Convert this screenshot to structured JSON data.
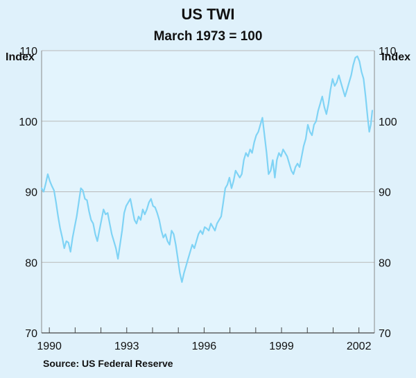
{
  "chart_data": {
    "type": "line",
    "title": "US TWI",
    "subtitle": "March 1973 = 100",
    "ylabel_left": "Index",
    "ylabel_right": "Index",
    "ylim": [
      70,
      110
    ],
    "yticks": [
      70,
      80,
      90,
      100,
      110
    ],
    "xlim": [
      1989.7,
      2002.6
    ],
    "xticks": [
      {
        "x": 1990,
        "label": "1990"
      },
      {
        "x": 1993,
        "label": "1993"
      },
      {
        "x": 1996,
        "label": "1996"
      },
      {
        "x": 1999,
        "label": "1999"
      },
      {
        "x": 2002,
        "label": "2002"
      }
    ],
    "grid": true,
    "line_color": "#7fd3f5",
    "series": [
      {
        "values": [
          [
            1989.7,
            90.5
          ],
          [
            1989.78,
            90.0
          ],
          [
            1989.86,
            91.2
          ],
          [
            1989.94,
            92.5
          ],
          [
            1990.02,
            91.5
          ],
          [
            1990.1,
            90.8
          ],
          [
            1990.18,
            90.2
          ],
          [
            1990.26,
            88.5
          ],
          [
            1990.34,
            86.5
          ],
          [
            1990.42,
            84.8
          ],
          [
            1990.5,
            83.5
          ],
          [
            1990.58,
            82.0
          ],
          [
            1990.66,
            83.0
          ],
          [
            1990.74,
            82.8
          ],
          [
            1990.82,
            81.5
          ],
          [
            1990.9,
            83.5
          ],
          [
            1990.98,
            85.0
          ],
          [
            1991.06,
            86.5
          ],
          [
            1991.14,
            88.5
          ],
          [
            1991.22,
            90.5
          ],
          [
            1991.3,
            90.2
          ],
          [
            1991.38,
            89.0
          ],
          [
            1991.46,
            88.8
          ],
          [
            1991.54,
            87.2
          ],
          [
            1991.62,
            86.0
          ],
          [
            1991.7,
            85.5
          ],
          [
            1991.78,
            84.0
          ],
          [
            1991.86,
            83.0
          ],
          [
            1991.94,
            84.5
          ],
          [
            1992.02,
            86.0
          ],
          [
            1992.1,
            87.5
          ],
          [
            1992.18,
            86.8
          ],
          [
            1992.26,
            87.0
          ],
          [
            1992.34,
            85.5
          ],
          [
            1992.42,
            84.0
          ],
          [
            1992.5,
            83.0
          ],
          [
            1992.58,
            82.0
          ],
          [
            1992.66,
            80.5
          ],
          [
            1992.74,
            82.5
          ],
          [
            1992.82,
            84.5
          ],
          [
            1992.9,
            87.0
          ],
          [
            1992.98,
            88.0
          ],
          [
            1993.06,
            88.5
          ],
          [
            1993.14,
            89.0
          ],
          [
            1993.22,
            87.5
          ],
          [
            1993.3,
            86.0
          ],
          [
            1993.38,
            85.5
          ],
          [
            1993.46,
            86.5
          ],
          [
            1993.54,
            86.0
          ],
          [
            1993.62,
            87.5
          ],
          [
            1993.7,
            86.8
          ],
          [
            1993.78,
            87.5
          ],
          [
            1993.86,
            88.5
          ],
          [
            1993.94,
            89.0
          ],
          [
            1994.02,
            88.0
          ],
          [
            1994.1,
            87.8
          ],
          [
            1994.18,
            87.0
          ],
          [
            1994.26,
            86.0
          ],
          [
            1994.34,
            84.5
          ],
          [
            1994.42,
            83.5
          ],
          [
            1994.5,
            84.0
          ],
          [
            1994.58,
            83.0
          ],
          [
            1994.66,
            82.5
          ],
          [
            1994.74,
            84.5
          ],
          [
            1994.82,
            84.0
          ],
          [
            1994.9,
            82.5
          ],
          [
            1994.98,
            80.5
          ],
          [
            1995.06,
            78.5
          ],
          [
            1995.14,
            77.2
          ],
          [
            1995.22,
            78.5
          ],
          [
            1995.3,
            79.5
          ],
          [
            1995.38,
            80.5
          ],
          [
            1995.46,
            81.5
          ],
          [
            1995.54,
            82.5
          ],
          [
            1995.62,
            82.0
          ],
          [
            1995.7,
            83.0
          ],
          [
            1995.78,
            84.0
          ],
          [
            1995.86,
            84.5
          ],
          [
            1995.94,
            84.0
          ],
          [
            1996.02,
            85.0
          ],
          [
            1996.1,
            84.8
          ],
          [
            1996.18,
            84.5
          ],
          [
            1996.26,
            85.5
          ],
          [
            1996.34,
            85.0
          ],
          [
            1996.42,
            84.5
          ],
          [
            1996.5,
            85.5
          ],
          [
            1996.58,
            86.0
          ],
          [
            1996.66,
            86.5
          ],
          [
            1996.74,
            88.5
          ],
          [
            1996.82,
            90.5
          ],
          [
            1996.9,
            91.0
          ],
          [
            1996.98,
            92.0
          ],
          [
            1997.06,
            90.5
          ],
          [
            1997.14,
            91.5
          ],
          [
            1997.22,
            93.0
          ],
          [
            1997.3,
            92.5
          ],
          [
            1997.38,
            92.0
          ],
          [
            1997.46,
            92.5
          ],
          [
            1997.54,
            94.5
          ],
          [
            1997.62,
            95.5
          ],
          [
            1997.7,
            95.0
          ],
          [
            1997.78,
            96.0
          ],
          [
            1997.86,
            95.5
          ],
          [
            1997.94,
            97.0
          ],
          [
            1998.02,
            98.0
          ],
          [
            1998.1,
            98.5
          ],
          [
            1998.18,
            99.5
          ],
          [
            1998.26,
            100.5
          ],
          [
            1998.34,
            98.0
          ],
          [
            1998.42,
            95.5
          ],
          [
            1998.5,
            92.5
          ],
          [
            1998.58,
            93.0
          ],
          [
            1998.66,
            94.5
          ],
          [
            1998.74,
            92.0
          ],
          [
            1998.82,
            94.5
          ],
          [
            1998.9,
            95.5
          ],
          [
            1998.98,
            95.0
          ],
          [
            1999.06,
            96.0
          ],
          [
            1999.14,
            95.5
          ],
          [
            1999.22,
            95.0
          ],
          [
            1999.3,
            94.0
          ],
          [
            1999.38,
            93.0
          ],
          [
            1999.46,
            92.5
          ],
          [
            1999.54,
            93.5
          ],
          [
            1999.62,
            94.0
          ],
          [
            1999.7,
            93.5
          ],
          [
            1999.78,
            95.0
          ],
          [
            1999.86,
            96.5
          ],
          [
            1999.94,
            97.5
          ],
          [
            2000.02,
            99.5
          ],
          [
            2000.1,
            98.5
          ],
          [
            2000.18,
            98.0
          ],
          [
            2000.26,
            99.5
          ],
          [
            2000.34,
            100.0
          ],
          [
            2000.42,
            101.5
          ],
          [
            2000.5,
            102.5
          ],
          [
            2000.58,
            103.5
          ],
          [
            2000.66,
            102.0
          ],
          [
            2000.74,
            101.0
          ],
          [
            2000.82,
            102.5
          ],
          [
            2000.9,
            104.5
          ],
          [
            2000.98,
            106.0
          ],
          [
            2001.06,
            105.0
          ],
          [
            2001.14,
            105.5
          ],
          [
            2001.22,
            106.5
          ],
          [
            2001.3,
            105.5
          ],
          [
            2001.38,
            104.5
          ],
          [
            2001.46,
            103.5
          ],
          [
            2001.54,
            104.5
          ],
          [
            2001.62,
            105.5
          ],
          [
            2001.7,
            106.5
          ],
          [
            2001.78,
            108.0
          ],
          [
            2001.86,
            109.0
          ],
          [
            2001.94,
            109.2
          ],
          [
            2002.02,
            108.5
          ],
          [
            2002.1,
            107.0
          ],
          [
            2002.18,
            106.0
          ],
          [
            2002.26,
            103.5
          ],
          [
            2002.34,
            100.5
          ],
          [
            2002.4,
            98.5
          ],
          [
            2002.46,
            99.5
          ],
          [
            2002.52,
            101.5
          ]
        ]
      }
    ]
  },
  "source": "Source: US Federal Reserve"
}
